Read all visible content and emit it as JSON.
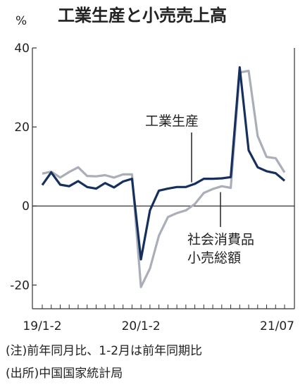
{
  "chart_data": {
    "type": "line",
    "title": "工業生産と小売売上高",
    "ylabel": "%",
    "ylim": [
      -26,
      40
    ],
    "yticks": [
      40,
      20,
      0,
      -20
    ],
    "x_tick_labels": [
      "19/1-2",
      "20/1-2",
      "21/07"
    ],
    "x": [
      "19/1-2",
      "19/03",
      "19/04",
      "19/05",
      "19/06",
      "19/07",
      "19/08",
      "19/09",
      "19/10",
      "19/11",
      "19/12",
      "20/1-2",
      "20/03",
      "20/04",
      "20/05",
      "20/06",
      "20/07",
      "20/08",
      "20/09",
      "20/10",
      "20/11",
      "20/12",
      "21/1-2",
      "21/03",
      "21/04",
      "21/05",
      "21/06",
      "21/07"
    ],
    "series": [
      {
        "name": "工業生産",
        "color": "#16305e",
        "values": [
          5.3,
          8.5,
          5.4,
          5.0,
          6.3,
          4.8,
          4.4,
          5.8,
          4.7,
          6.2,
          6.9,
          -13.5,
          -1.1,
          3.9,
          4.4,
          4.8,
          4.8,
          5.6,
          6.9,
          6.9,
          7.0,
          7.3,
          35.1,
          14.1,
          9.8,
          8.8,
          8.3,
          6.4
        ]
      },
      {
        "name": "社会消費品\n小売総額",
        "color": "#a9aeb8",
        "values": [
          8.2,
          8.7,
          7.2,
          8.6,
          9.8,
          7.6,
          7.5,
          7.8,
          7.2,
          8.0,
          8.0,
          -20.5,
          -15.8,
          -7.5,
          -2.8,
          -1.8,
          -1.1,
          0.5,
          3.3,
          4.3,
          5.0,
          4.6,
          33.8,
          34.2,
          17.7,
          12.4,
          12.1,
          8.5
        ]
      }
    ],
    "labels": {
      "industrial": "工業生産",
      "retail_line1": "社会消費品",
      "retail_line2": "小売総額"
    }
  },
  "notes": {
    "note": "(注)前年同月比、1-2月は前年同期比",
    "source": "(出所)中国国家統計局"
  }
}
